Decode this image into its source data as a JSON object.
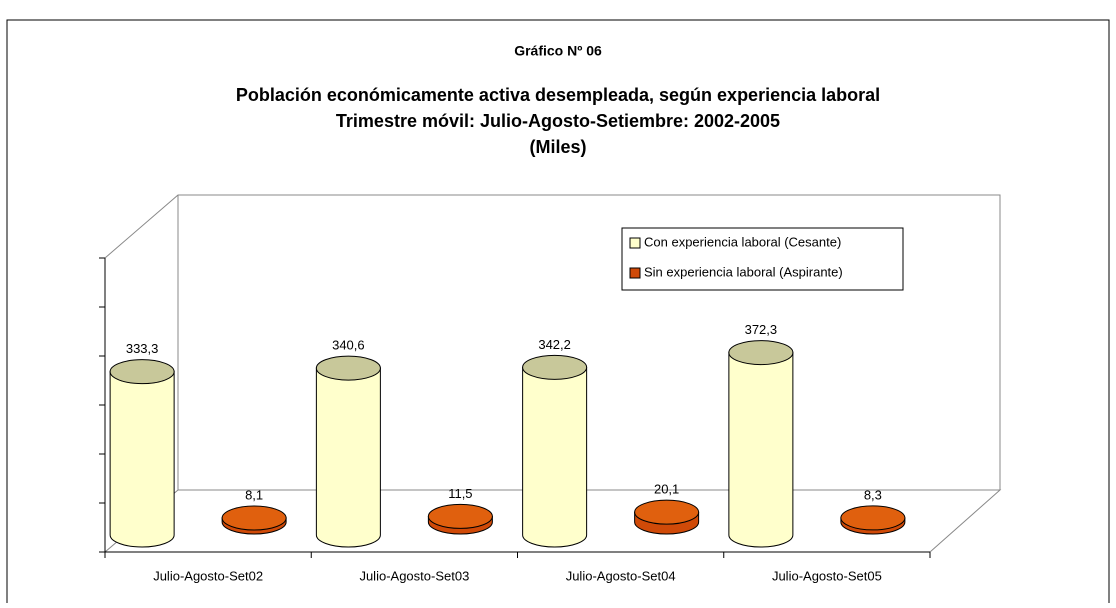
{
  "chart_data": {
    "type": "bar3d",
    "title": "Gráfico Nº 06",
    "subtitle": [
      "Población económicamente activa desempleada, según experiencia laboral",
      "Trimestre móvil: Julio-Agosto-Setiembre: 2002-2005",
      "(Miles)"
    ],
    "categories": [
      "Julio-Agosto-Set02",
      "Julio-Agosto-Set03",
      "Julio-Agosto-Set04",
      "Julio-Agosto-Set05"
    ],
    "series": [
      {
        "name": "Con experiencia laboral (Cesante)",
        "color": "#ffffcc",
        "values": [
          333.3,
          340.6,
          342.2,
          372.3
        ],
        "value_labels": [
          "333,3",
          "340,6",
          "342,2",
          "372,3"
        ]
      },
      {
        "name": "Sin experiencia laboral (Aspirante)",
        "color": "#d04a08",
        "values": [
          8.1,
          11.5,
          20.1,
          8.3
        ],
        "value_labels": [
          "8,1",
          "11,5",
          "20,1",
          "8,3"
        ]
      }
    ],
    "ylim": [
      0,
      600
    ],
    "yticks": [
      0,
      100,
      200,
      300,
      400,
      500,
      600
    ],
    "legend": "top-right"
  }
}
